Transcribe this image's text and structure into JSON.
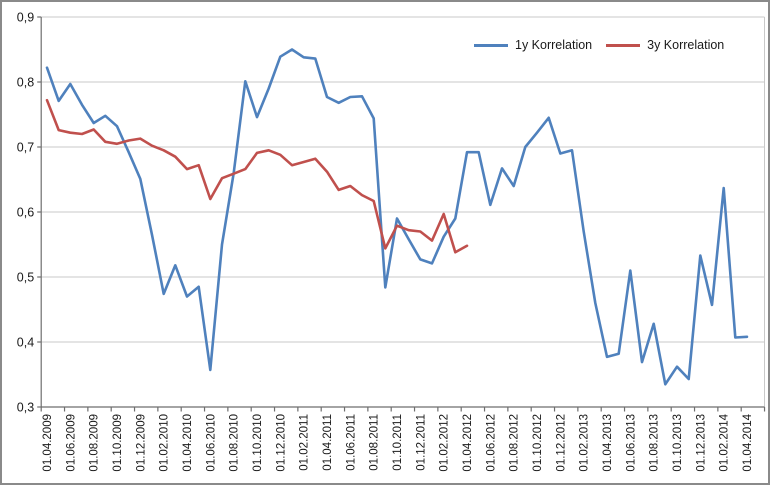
{
  "chart_data": {
    "type": "line",
    "title": "",
    "x_start": "01.04.2009",
    "x_end": "01.04.2014",
    "x_step_months": 1,
    "x_tick_labels": [
      "01.04.2009",
      "01.06.2009",
      "01.08.2009",
      "01.10.2009",
      "01.12.2009",
      "01.02.2010",
      "01.04.2010",
      "01.06.2010",
      "01.08.2010",
      "01.10.2010",
      "01.12.2010",
      "01.02.2011",
      "01.04.2011",
      "01.06.2011",
      "01.08.2011",
      "01.10.2011",
      "01.12.2011",
      "01.02.2012",
      "01.04.2012",
      "01.06.2012",
      "01.08.2012",
      "01.10.2012",
      "01.12.2012",
      "01.02.2013",
      "01.04.2013",
      "01.06.2013",
      "01.08.2013",
      "01.10.2013",
      "01.12.2013",
      "01.02.2014",
      "01.04.2014"
    ],
    "y_tick_labels": [
      "0,3",
      "0,4",
      "0,5",
      "0,6",
      "0,7",
      "0,8",
      "0,9"
    ],
    "ylim": [
      0.3,
      0.9
    ],
    "grid": "horizontal-only",
    "legend_position": "top-right-inside",
    "series": [
      {
        "name": "1y Korrelation",
        "color": "#4F81BD",
        "values": [
          0.822,
          0.771,
          0.797,
          0.765,
          0.737,
          0.748,
          0.732,
          0.692,
          0.651,
          0.565,
          0.474,
          0.518,
          0.47,
          0.485,
          0.357,
          0.55,
          0.66,
          0.801,
          0.746,
          0.79,
          0.839,
          0.85,
          0.838,
          0.836,
          0.777,
          0.768,
          0.777,
          0.778,
          0.744,
          0.484,
          0.59,
          0.558,
          0.527,
          0.521,
          0.562,
          0.59,
          0.692,
          0.692,
          0.611,
          0.667,
          0.64,
          0.7,
          0.722,
          0.745,
          0.69,
          0.695,
          0.57,
          0.46,
          0.377,
          0.382,
          0.51,
          0.369,
          0.428,
          0.335,
          0.362,
          0.343,
          0.533,
          0.457,
          0.637,
          0.407,
          0.408
        ]
      },
      {
        "name": "3y Korrelation",
        "color": "#C0504D",
        "values": [
          0.772,
          0.726,
          0.722,
          0.72,
          0.727,
          0.708,
          0.705,
          0.71,
          0.713,
          0.702,
          0.695,
          0.685,
          0.666,
          0.672,
          0.62,
          0.652,
          0.659,
          0.666,
          0.691,
          0.695,
          0.688,
          0.672,
          0.677,
          0.682,
          0.662,
          0.634,
          0.64,
          0.626,
          0.617,
          0.544,
          0.579,
          0.572,
          0.57,
          0.556,
          0.597,
          0.538,
          0.548
        ]
      }
    ],
    "colors": {
      "grid": "#c9c9c9",
      "axis": "#6e6e6e",
      "text": "#1a1a1a",
      "background": "#ffffff",
      "border": "#8a8a8a"
    }
  }
}
